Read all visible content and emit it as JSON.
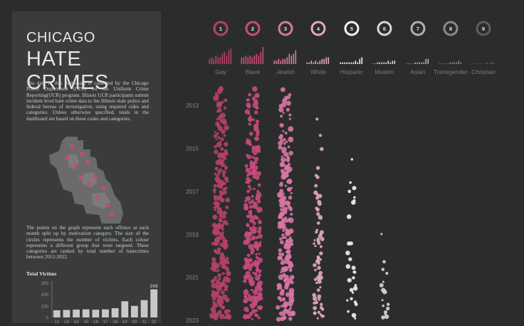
{
  "title": {
    "line1": "CHICAGO",
    "line2": "HATE CRIMES"
  },
  "description": "Tha data in this dashboard is collected by the Chicago Police Department (CPD) for the Uniform Crime Reporting(UCR) program. Illinois UCR participants submit incident level hate crime data to the Illinois state police and federal bereau of investigation, using required cides and categories. Unless otherwise specified, totals in the dashboard are based on these codes and categories.",
  "explanation": "The points on the graph represent each offence at each month split up by motivation category. The size of the circles represents the number of victims. Each colour represents a different group that were targeted. These categories are ranked by total number of hatecrimes between 2012-2022.",
  "colors": {
    "background": "#2b2d2d",
    "panel": "#3a3c3c",
    "bar": "#c8c8c8"
  },
  "chart_data": [
    {
      "type": "bar",
      "title": "Total Victims",
      "categories": [
        "12",
        "13",
        "14",
        "15",
        "16",
        "17",
        "18",
        "19",
        "20",
        "21",
        "22"
      ],
      "values": [
        62,
        65,
        68,
        70,
        67,
        70,
        80,
        140,
        100,
        150,
        243
      ],
      "data_labels": [
        {
          "category": "22",
          "text": "243"
        }
      ],
      "yticks": [
        0,
        100,
        200,
        300
      ],
      "ylim": [
        0,
        320
      ]
    },
    {
      "type": "scatter",
      "title": "",
      "yaxis": {
        "ticks": [
          "2013",
          "2015",
          "2017",
          "2019",
          "2021",
          "2023"
        ],
        "ylim": [
          2012,
          2023
        ]
      },
      "categories": [
        {
          "rank": "1",
          "name": "Gay",
          "color": "#b5406a",
          "spark": [
            3,
            4,
            3,
            5,
            4,
            4,
            6,
            7,
            5,
            8,
            9
          ]
        },
        {
          "rank": "2",
          "name": "Black",
          "color": "#c84a7c",
          "spark": [
            4,
            4,
            5,
            4,
            5,
            4,
            5,
            6,
            5,
            7,
            10
          ]
        },
        {
          "rank": "3",
          "name": "Jewish",
          "color": "#d977a3",
          "spark": [
            2,
            2,
            3,
            2,
            3,
            3,
            4,
            6,
            5,
            6,
            8
          ]
        },
        {
          "rank": "4",
          "name": "White",
          "color": "#e6a6c3",
          "spark": [
            1,
            1,
            2,
            1,
            2,
            1,
            2,
            3,
            3,
            4,
            4
          ]
        },
        {
          "rank": "5",
          "name": "Hispanic",
          "color": "#f2f2f2",
          "spark": [
            1,
            1,
            1,
            1,
            1,
            1,
            1,
            2,
            1,
            3,
            4
          ]
        },
        {
          "rank": "6",
          "name": "Muslim",
          "color": "#d6d6d6",
          "spark": [
            0,
            0,
            1,
            1,
            1,
            1,
            1,
            2,
            1,
            2,
            2
          ]
        },
        {
          "rank": "7",
          "name": "Asian",
          "color": "#b0b0b0",
          "spark": [
            0,
            0,
            0,
            0,
            1,
            1,
            1,
            1,
            1,
            3,
            3
          ]
        },
        {
          "rank": "8",
          "name": "Transgender",
          "color": "#8a8a8a",
          "spark": [
            0,
            0,
            0,
            0,
            0,
            1,
            1,
            1,
            1,
            2,
            1
          ]
        },
        {
          "rank": "9",
          "name": "Christian",
          "color": "#5e5e5e",
          "spark": [
            0,
            0,
            0,
            0,
            0,
            0,
            0,
            1,
            0,
            1,
            1
          ]
        }
      ]
    }
  ]
}
